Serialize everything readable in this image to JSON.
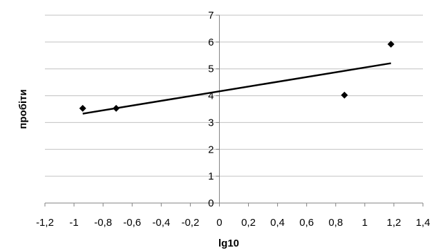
{
  "chart_data": {
    "type": "scatter",
    "xlabel": "lg10",
    "ylabel": "пробіти",
    "xlim": [
      -1.2,
      1.4
    ],
    "ylim": [
      0,
      7
    ],
    "x_ticks": [
      "-1,2",
      "-1",
      "-0,8",
      "-0,6",
      "-0,4",
      "-0,2",
      "0",
      "0,2",
      "0,4",
      "0,6",
      "0,8",
      "1",
      "1,2",
      "1,4"
    ],
    "y_ticks": [
      "0",
      "1",
      "2",
      "3",
      "4",
      "5",
      "6",
      "7"
    ],
    "grid": "horizontal",
    "legend": "none",
    "points": [
      {
        "x": -0.94,
        "y": 3.53
      },
      {
        "x": -0.71,
        "y": 3.53
      },
      {
        "x": 0.86,
        "y": 4.02
      },
      {
        "x": 1.18,
        "y": 5.92
      }
    ],
    "trendline": {
      "x": [
        -0.94,
        1.18
      ],
      "y": [
        3.33,
        5.21
      ]
    },
    "colors": {
      "marker": "#000000",
      "trendline": "#000000",
      "grid": "#c0c0c0",
      "axis": "#808080"
    }
  }
}
